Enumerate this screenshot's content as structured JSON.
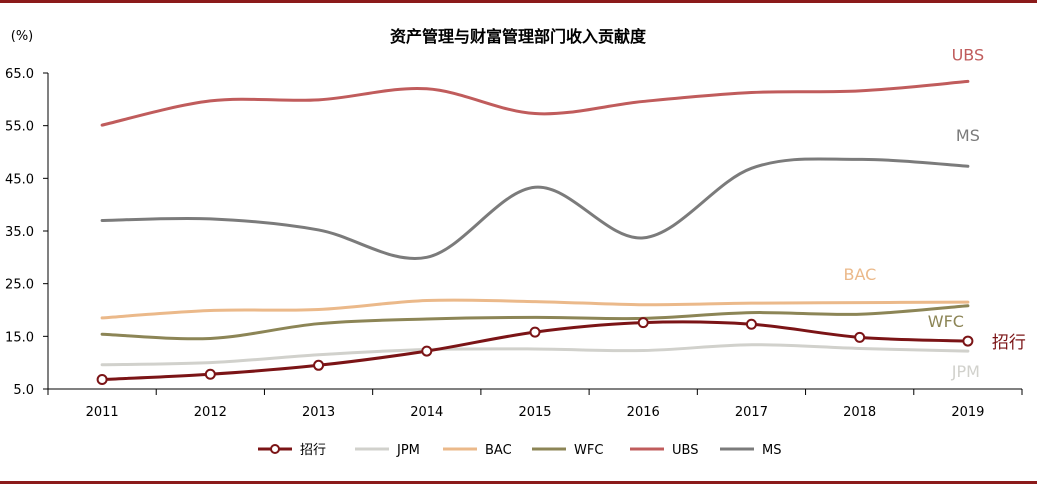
{
  "chart_data": {
    "type": "line",
    "title": "资产管理与财富管理部门收入贡献度",
    "ylabel": "(%)",
    "xlabel": "",
    "ylim": [
      5.0,
      65.0
    ],
    "yticks": [
      "5.0",
      "15.0",
      "25.0",
      "35.0",
      "45.0",
      "55.0",
      "65.0"
    ],
    "categories": [
      "2011",
      "2012",
      "2013",
      "2014",
      "2015",
      "2016",
      "2017",
      "2018",
      "2019"
    ],
    "legend_position": "bottom",
    "series": [
      {
        "name": "招行",
        "color": "#7b1416",
        "markers": true,
        "values": [
          6.8,
          7.8,
          9.5,
          12.2,
          15.8,
          17.6,
          17.3,
          14.8,
          14.1
        ]
      },
      {
        "name": "JPM",
        "color": "#d1d1cc",
        "markers": false,
        "values": [
          9.6,
          10.0,
          11.5,
          12.5,
          12.6,
          12.3,
          13.4,
          12.7,
          12.2
        ]
      },
      {
        "name": "BAC",
        "color": "#ebb98a",
        "markers": false,
        "values": [
          18.5,
          19.9,
          20.1,
          21.8,
          21.6,
          21.0,
          21.3,
          21.4,
          21.5
        ]
      },
      {
        "name": "WFC",
        "color": "#8c8556",
        "markers": false,
        "values": [
          15.4,
          14.6,
          17.4,
          18.3,
          18.6,
          18.4,
          19.5,
          19.2,
          20.8
        ]
      },
      {
        "name": "UBS",
        "color": "#c05c5c",
        "markers": false,
        "values": [
          55.1,
          59.7,
          59.9,
          62.0,
          57.3,
          59.6,
          61.3,
          61.6,
          63.4
        ]
      },
      {
        "name": "MS",
        "color": "#7b7b7b",
        "markers": false,
        "values": [
          37.0,
          37.3,
          35.2,
          30.0,
          43.3,
          33.7,
          46.9,
          48.6,
          47.3
        ]
      }
    ],
    "end_labels": [
      {
        "series": "UBS",
        "text": "UBS"
      },
      {
        "series": "MS",
        "text": "MS"
      },
      {
        "series": "BAC",
        "text": "BAC"
      },
      {
        "series": "WFC",
        "text": "WFC"
      },
      {
        "series": "招行",
        "text": "招行"
      },
      {
        "series": "JPM",
        "text": "JPM"
      }
    ]
  }
}
